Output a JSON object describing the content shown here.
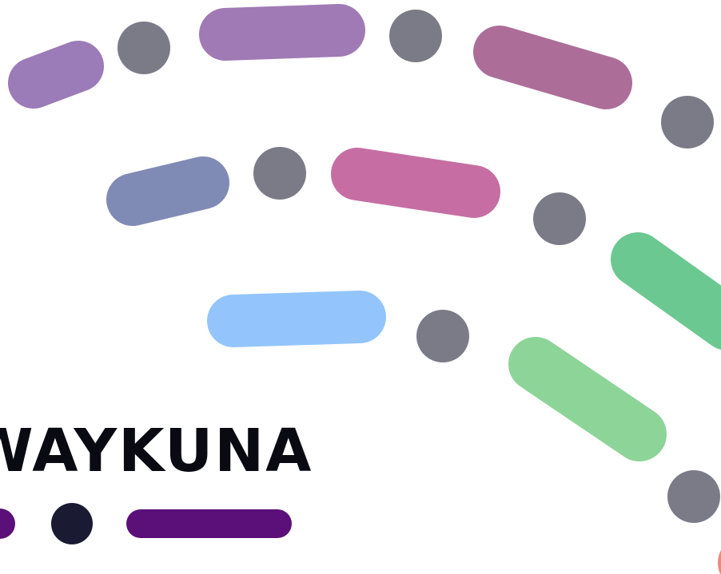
{
  "logo": {
    "text": "WAYKUNA"
  }
}
